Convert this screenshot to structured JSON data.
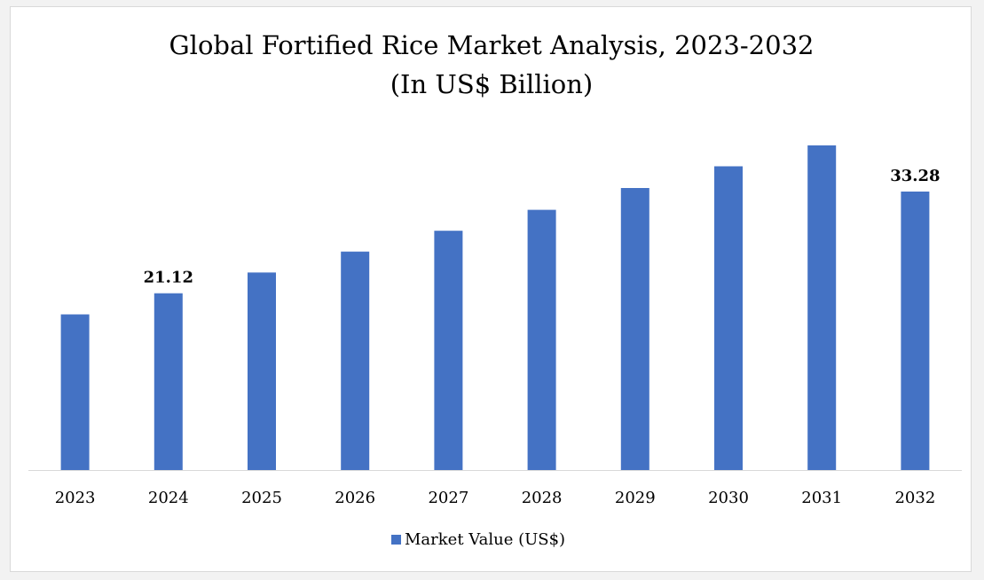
{
  "chart_data": {
    "type": "bar",
    "title": "Global Fortified Rice Market Analysis, 2023-2032",
    "subtitle": "(In US$ Billion)",
    "categories": [
      "2023",
      "2024",
      "2025",
      "2026",
      "2027",
      "2028",
      "2029",
      "2030",
      "2031",
      "2032"
    ],
    "series": [
      {
        "name": "Market Value (US$)",
        "color": "#4472c4",
        "values": [
          18.6,
          21.12,
          23.6,
          26.1,
          28.6,
          31.1,
          33.7,
          36.3,
          38.8,
          33.28
        ]
      }
    ],
    "data_labels": [
      {
        "category": "2024",
        "text": "21.12"
      },
      {
        "category": "2032",
        "text": "33.28"
      }
    ],
    "legend_position": "bottom",
    "grid": false,
    "y_axis_visible": false
  }
}
